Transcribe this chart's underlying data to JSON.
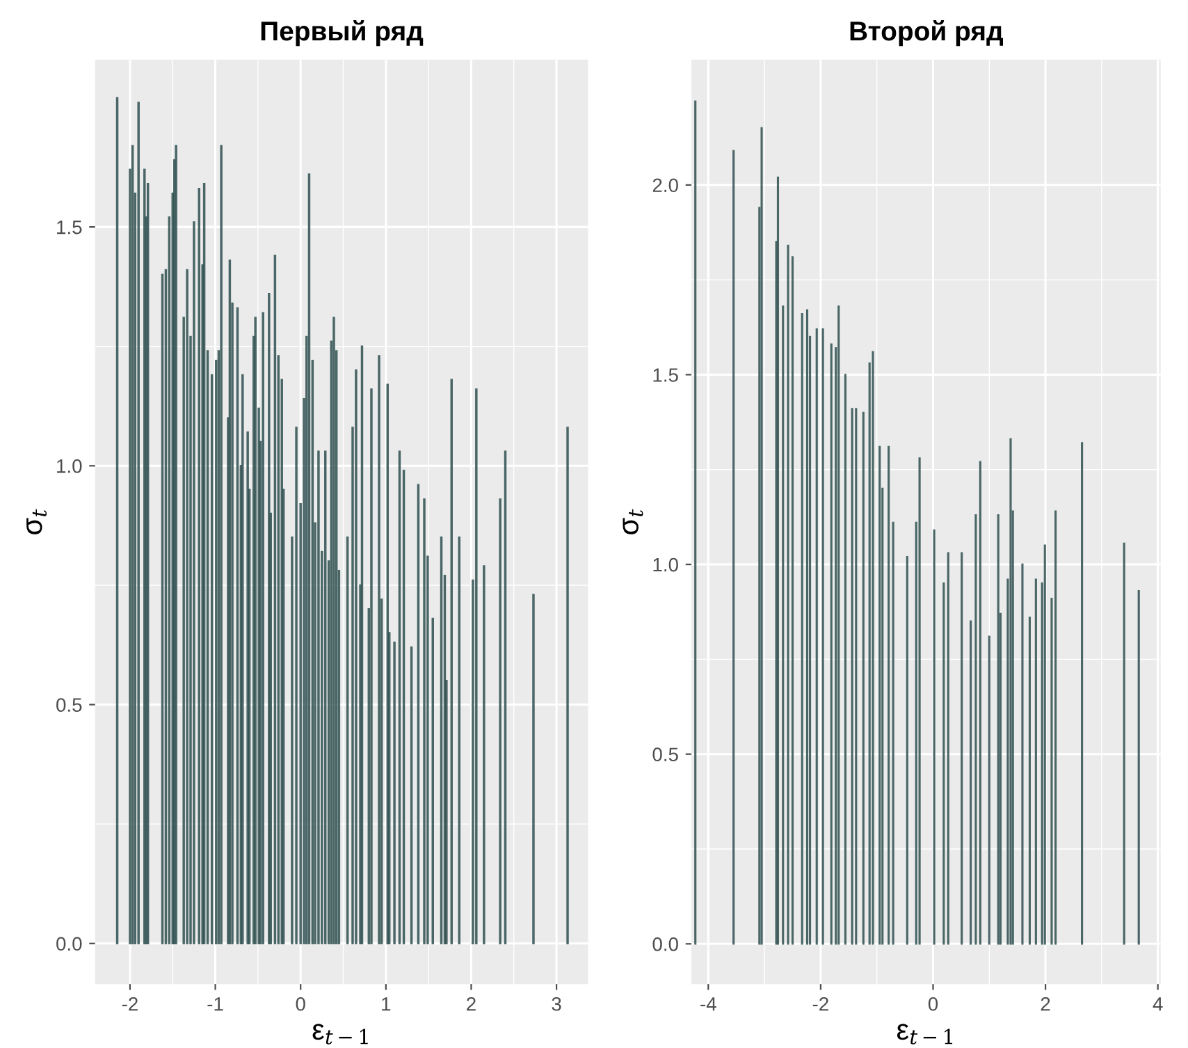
{
  "chart_data": [
    {
      "type": "bar",
      "title": "Первый ряд",
      "xlabel": "ε$_{t−1}$",
      "ylabel": "σ$_{t}$",
      "x": [
        -2.15,
        -2.0,
        -1.97,
        -1.94,
        -1.9,
        -1.83,
        -1.81,
        -1.79,
        -1.62,
        -1.58,
        -1.54,
        -1.5,
        -1.48,
        -1.46,
        -1.37,
        -1.33,
        -1.29,
        -1.25,
        -1.19,
        -1.15,
        -1.13,
        -1.09,
        -1.04,
        -0.99,
        -0.96,
        -0.93,
        -0.85,
        -0.83,
        -0.8,
        -0.74,
        -0.7,
        -0.68,
        -0.62,
        -0.6,
        -0.55,
        -0.53,
        -0.49,
        -0.47,
        -0.44,
        -0.37,
        -0.35,
        -0.3,
        -0.26,
        -0.22,
        -0.2,
        -0.1,
        -0.05,
        0.0,
        0.04,
        0.07,
        0.1,
        0.14,
        0.17,
        0.21,
        0.25,
        0.29,
        0.33,
        0.36,
        0.39,
        0.42,
        0.45,
        0.55,
        0.61,
        0.65,
        0.7,
        0.72,
        0.8,
        0.83,
        0.92,
        0.95,
        1.02,
        1.04,
        1.1,
        1.16,
        1.21,
        1.3,
        1.38,
        1.45,
        1.49,
        1.55,
        1.65,
        1.69,
        1.71,
        1.77,
        1.86,
        2.02,
        2.06,
        2.15,
        2.34,
        2.4,
        2.73,
        3.13
      ],
      "series": [
        {
          "color": "#2f4f4f",
          "values": [
            1.77,
            1.62,
            1.67,
            1.57,
            1.76,
            1.62,
            1.52,
            1.59,
            1.4,
            1.41,
            1.52,
            1.57,
            1.64,
            1.67,
            1.31,
            1.41,
            1.27,
            1.51,
            1.58,
            1.42,
            1.59,
            1.24,
            1.19,
            1.22,
            1.24,
            1.67,
            1.1,
            1.43,
            1.34,
            1.33,
            1.0,
            1.19,
            1.07,
            0.95,
            1.27,
            1.31,
            1.12,
            1.05,
            1.32,
            1.36,
            0.9,
            1.44,
            1.23,
            1.18,
            0.95,
            0.85,
            1.08,
            0.92,
            1.14,
            1.27,
            1.61,
            1.22,
            0.88,
            1.03,
            0.82,
            1.03,
            0.8,
            1.26,
            1.31,
            1.24,
            0.78,
            0.85,
            1.08,
            1.2,
            0.75,
            1.25,
            0.7,
            1.16,
            1.23,
            0.72,
            1.17,
            0.65,
            0.63,
            1.03,
            0.99,
            0.62,
            0.96,
            0.93,
            0.81,
            0.68,
            0.85,
            0.77,
            0.55,
            1.18,
            0.85,
            0.76,
            1.16,
            0.79,
            0.93,
            1.03,
            0.73,
            1.08
          ]
        }
      ],
      "xlim": [
        -2.41,
        3.37
      ],
      "ylim": [
        -0.085,
        1.85
      ],
      "xticks": [
        -2,
        -1,
        0,
        1,
        2,
        3
      ],
      "yticks": [
        {
          "value": 0,
          "label": "0.0"
        },
        {
          "value": 0.5,
          "label": "0.5"
        },
        {
          "value": 1,
          "label": "1.0"
        },
        {
          "value": 1.5,
          "label": "1.5"
        }
      ],
      "grid": true
    },
    {
      "type": "bar",
      "title": "Второй ряд",
      "xlabel": "ε$_{t−1}$",
      "ylabel": "σ$_{t}$",
      "x": [
        -4.23,
        -3.55,
        -3.09,
        -3.05,
        -2.79,
        -2.76,
        -2.67,
        -2.58,
        -2.5,
        -2.33,
        -2.24,
        -2.19,
        -2.07,
        -1.96,
        -1.81,
        -1.73,
        -1.68,
        -1.56,
        -1.44,
        -1.37,
        -1.24,
        -1.13,
        -1.07,
        -0.95,
        -0.9,
        -0.79,
        -0.71,
        -0.46,
        -0.3,
        -0.24,
        0.02,
        0.19,
        0.27,
        0.51,
        0.67,
        0.76,
        0.84,
        1.0,
        1.16,
        1.2,
        1.33,
        1.38,
        1.42,
        1.59,
        1.72,
        1.83,
        1.94,
        1.99,
        2.11,
        2.18,
        2.65,
        3.4,
        3.66
      ],
      "series": [
        {
          "color": "#2f4f4f",
          "values": [
            2.22,
            2.09,
            1.94,
            2.15,
            1.85,
            2.02,
            1.68,
            1.84,
            1.81,
            1.66,
            1.67,
            1.6,
            1.62,
            1.62,
            1.58,
            1.57,
            1.68,
            1.5,
            1.41,
            1.41,
            1.4,
            1.53,
            1.56,
            1.31,
            1.2,
            1.31,
            1.11,
            1.02,
            1.11,
            1.28,
            1.09,
            0.95,
            1.03,
            1.03,
            0.85,
            1.13,
            1.27,
            0.81,
            1.13,
            0.87,
            0.96,
            1.33,
            1.14,
            1.0,
            0.86,
            0.96,
            0.95,
            1.05,
            0.91,
            1.14,
            1.32,
            1.055,
            0.93
          ]
        }
      ],
      "xlim": [
        -4.3,
        4.05
      ],
      "ylim": [
        -0.106,
        2.33
      ],
      "xticks": [
        -4,
        -2,
        0,
        2,
        4
      ],
      "yticks": [
        {
          "value": 0,
          "label": "0.0"
        },
        {
          "value": 0.5,
          "label": "0.5"
        },
        {
          "value": 1,
          "label": "1.0"
        },
        {
          "value": 1.5,
          "label": "1.5"
        },
        {
          "value": 2,
          "label": "2.0"
        }
      ],
      "grid": true
    }
  ]
}
